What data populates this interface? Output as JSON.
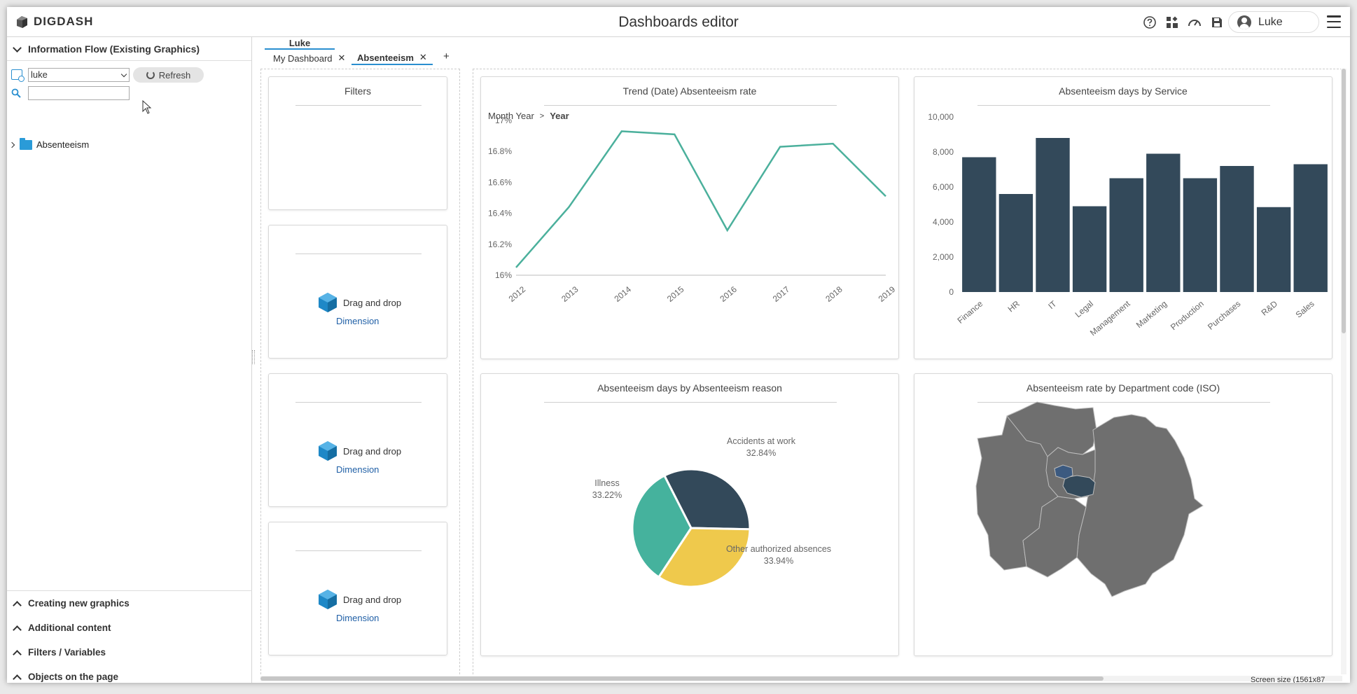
{
  "header": {
    "logo_text": "DIGDASH",
    "title": "Dashboards editor",
    "user_name": "Luke",
    "icons": [
      "help-icon",
      "widgets-icon",
      "gauge-icon",
      "save-icon",
      "user-icon",
      "hamburger-menu-icon"
    ]
  },
  "left_panel": {
    "info_flow_title": "Information Flow (Existing Graphics)",
    "user_select_value": "luke",
    "refresh_label": "Refresh",
    "search_value": "",
    "tree_items": [
      {
        "label": "Absenteeism"
      }
    ],
    "bottom_sections": [
      {
        "label": "Creating new graphics"
      },
      {
        "label": "Additional content"
      },
      {
        "label": "Filters / Variables"
      },
      {
        "label": "Objects on the page"
      }
    ]
  },
  "tabs": {
    "group": "Luke",
    "items": [
      {
        "label": "My Dashboard",
        "close": "✕"
      },
      {
        "label": "Absenteeism",
        "close": "✕"
      }
    ],
    "add_label": "+"
  },
  "filters": {
    "title": "Filters",
    "drop_label": "Drag and drop",
    "drop_type": "Dimension"
  },
  "charts": {
    "trend": {
      "title": "Trend (Date) Absenteeism rate",
      "breadcrumb_parent": "Month Year",
      "breadcrumb_current": "Year"
    },
    "service": {
      "title": "Absenteeism days by Service"
    },
    "reason": {
      "title": "Absenteeism days by Absenteeism reason"
    },
    "department": {
      "title": "Absenteeism rate by Department code (ISO)"
    }
  },
  "chart_data": [
    {
      "type": "line",
      "title": "Trend (Date) Absenteeism rate",
      "x": [
        "2012",
        "2013",
        "2014",
        "2015",
        "2016",
        "2017",
        "2018",
        "2019"
      ],
      "series": [
        {
          "values": [
            16.05,
            16.44,
            16.93,
            16.91,
            16.29,
            16.83,
            16.85,
            16.51
          ]
        }
      ],
      "y_ticks": [
        "16%",
        "16.2%",
        "16.4%",
        "16.6%",
        "16.8%",
        "17%"
      ],
      "ylim": [
        16,
        17
      ],
      "color": "#4bb09c",
      "grid": false
    },
    {
      "type": "bar",
      "title": "Absenteeism days by Service",
      "categories": [
        "Finance",
        "HR",
        "IT",
        "Legal",
        "Management",
        "Marketing",
        "Production",
        "Purchases",
        "R&D",
        "Sales"
      ],
      "values": [
        7700,
        5600,
        8800,
        4900,
        6500,
        7900,
        6500,
        7200,
        4850,
        7300
      ],
      "y_ticks": [
        "0",
        "2,000",
        "4,000",
        "6,000",
        "8,000",
        "10,000"
      ],
      "ylim": [
        0,
        10000
      ],
      "color": "#33495a",
      "grid": false
    },
    {
      "type": "pie",
      "title": "Absenteeism days by Absenteeism reason",
      "slices": [
        {
          "label": "Accidents at work",
          "pct_label": "32.84%",
          "value": 32.84,
          "color": "#33495a"
        },
        {
          "label": "Other authorized absences",
          "pct_label": "33.94%",
          "value": 33.94,
          "color": "#efc94c"
        },
        {
          "label": "Illness",
          "pct_label": "33.22%",
          "value": 33.22,
          "color": "#45b29d"
        }
      ]
    }
  ],
  "map": {
    "land_color": "#6f6f6f",
    "highlight_dark": "#33495a",
    "highlight_blue": "#3c5a80"
  },
  "status": {
    "screen_size": "Screen size (1561x87"
  }
}
